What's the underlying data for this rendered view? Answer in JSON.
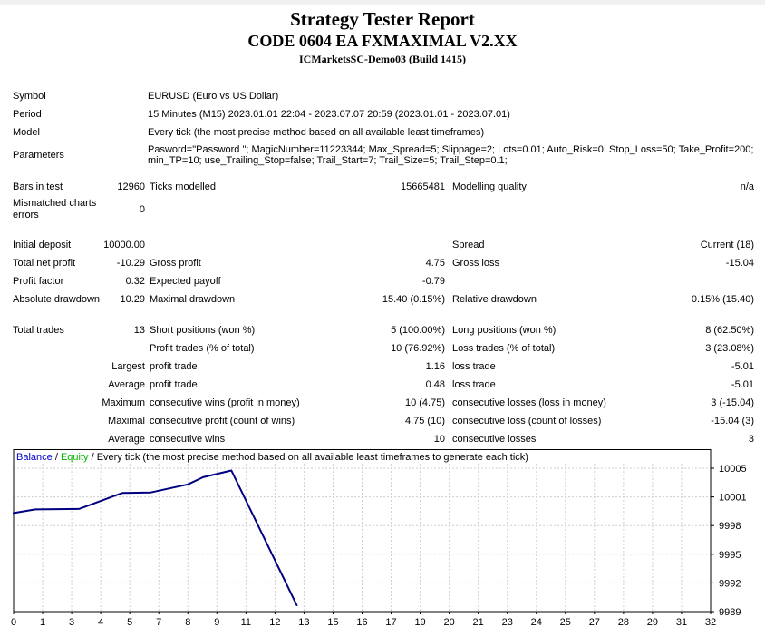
{
  "header": {
    "title": "Strategy Tester Report",
    "subtitle": "CODE 0604 EA FXMAXIMAL V2.XX",
    "server": "ICMarketsSC-Demo03 (Build 1415)"
  },
  "info_rows": [
    {
      "label": "Symbol",
      "value": "EURUSD (Euro vs US Dollar)"
    },
    {
      "label": "Period",
      "value": "15 Minutes (M15) 2023.01.01 22:04 - 2023.07.07 20:59 (2023.01.01 - 2023.07.01)"
    },
    {
      "label": "Model",
      "value": "Every tick (the most precise method based on all available least timeframes)"
    },
    {
      "label": "Parameters",
      "value": "Pasword=\"Password \"; MagicNumber=11223344; Max_Spread=5; Slippage=2; Lots=0.01; Auto_Risk=0; Stop_Loss=50; Take_Profit=200; min_TP=10; use_Trailing_Stop=false; Trail_Start=7; Trail_Size=5; Trail_Step=0.1;"
    }
  ],
  "stats_sections": [
    {
      "rows": [
        {
          "c1": "Bars in test",
          "v1": "12960",
          "c2": "Ticks modelled",
          "v2": "15665481",
          "c3": "Modelling quality",
          "v3": "n/a"
        },
        {
          "c1": "Mismatched charts errors",
          "v1": "0",
          "c2": "",
          "v2": "",
          "c3": "",
          "v3": ""
        }
      ]
    },
    {
      "rows": [
        {
          "c1": "Initial deposit",
          "v1": "10000.00",
          "c2": "",
          "v2": "",
          "c3": "Spread",
          "v3": "Current (18)"
        },
        {
          "c1": "Total net profit",
          "v1": "-10.29",
          "c2": "Gross profit",
          "v2": "4.75",
          "c3": "Gross loss",
          "v3": "-15.04"
        },
        {
          "c1": "Profit factor",
          "v1": "0.32",
          "c2": "Expected payoff",
          "v2": "-0.79",
          "c3": "",
          "v3": ""
        },
        {
          "c1": "Absolute drawdown",
          "v1": "10.29",
          "c2": "Maximal drawdown",
          "v2": "15.40 (0.15%)",
          "c3": "Relative drawdown",
          "v3": "0.15% (15.40)"
        }
      ]
    },
    {
      "rows": [
        {
          "c1": "Total trades",
          "v1": "13",
          "c2": "Short positions (won %)",
          "v2": "5 (100.00%)",
          "c3": "Long positions (won %)",
          "v3": "8 (62.50%)"
        },
        {
          "c1": "",
          "v1": "",
          "c2": "Profit trades (% of total)",
          "v2": "10 (76.92%)",
          "c3": "Loss trades (% of total)",
          "v3": "3 (23.08%)"
        },
        {
          "c1": "",
          "v1": "Largest",
          "c2": "profit trade",
          "v2": "1.16",
          "c3": "loss trade",
          "v3": "-5.01"
        },
        {
          "c1": "",
          "v1": "Average",
          "c2": "profit trade",
          "v2": "0.48",
          "c3": "loss trade",
          "v3": "-5.01"
        },
        {
          "c1": "",
          "v1": "Maximum",
          "c2": "consecutive wins (profit in money)",
          "v2": "10 (4.75)",
          "c3": "consecutive losses (loss in money)",
          "v3": "3 (-15.04)"
        },
        {
          "c1": "",
          "v1": "Maximal",
          "c2": "consecutive profit (count of wins)",
          "v2": "4.75 (10)",
          "c3": "consecutive loss (count of losses)",
          "v3": "-15.04 (3)"
        },
        {
          "c1": "",
          "v1": "Average",
          "c2": "consecutive wins",
          "v2": "10",
          "c3": "consecutive losses",
          "v3": "3"
        }
      ]
    }
  ],
  "chart": {
    "legend": {
      "balance_label": "Balance",
      "separator": " / ",
      "equity_label": "Equity",
      "description": "Every tick (the most precise method based on all available least timeframes to generate each tick)"
    },
    "colors": {
      "balance_text": "#0000C8",
      "equity_text": "#00B400",
      "line": "#000080",
      "grid": "#CFCFCF",
      "border": "#000000"
    },
    "x_labels": [
      "0",
      "1",
      "3",
      "4",
      "5",
      "7",
      "8",
      "9",
      "11",
      "12",
      "13",
      "15",
      "16",
      "17",
      "19",
      "20",
      "21",
      "23",
      "24",
      "25",
      "27",
      "28",
      "29",
      "31",
      "32"
    ],
    "x_max": 32,
    "y_ticks": [
      10005,
      10001,
      9998,
      9995,
      9992,
      9989
    ],
    "y_top_value": 10005,
    "y_bottom_value": 9989,
    "balance_series": [
      {
        "trade": 0,
        "balance": 10000.0
      },
      {
        "trade": 1,
        "balance": 10000.4
      },
      {
        "trade": 3,
        "balance": 10000.45
      },
      {
        "trade": 5,
        "balance": 10002.25
      },
      {
        "trade": 6.3,
        "balance": 10002.3
      },
      {
        "trade": 8,
        "balance": 10003.2
      },
      {
        "trade": 8.7,
        "balance": 10004.0
      },
      {
        "trade": 10,
        "balance": 10004.75
      },
      {
        "trade": 13,
        "balance": 9989.71
      }
    ]
  },
  "chart_data": {
    "type": "line",
    "title": "Balance / Equity / Every tick (the most precise method based on all available least timeframes to generate each tick)",
    "series": [
      {
        "name": "Balance",
        "x": [
          0,
          1,
          3,
          5,
          6.3,
          8,
          8.7,
          10,
          13
        ],
        "y": [
          10000.0,
          10000.4,
          10000.45,
          10002.25,
          10002.3,
          10003.2,
          10004.0,
          10004.75,
          9989.71
        ]
      }
    ],
    "xlim": [
      0,
      32
    ],
    "x_tick_labels": [
      "0",
      "1",
      "3",
      "4",
      "5",
      "7",
      "8",
      "9",
      "11",
      "12",
      "13",
      "15",
      "16",
      "17",
      "19",
      "20",
      "21",
      "23",
      "24",
      "25",
      "27",
      "28",
      "29",
      "31",
      "32"
    ],
    "y_tick_labels": [
      "10005",
      "10001",
      "9998",
      "9995",
      "9992",
      "9989"
    ],
    "grid": true,
    "legend_position": "top-left"
  }
}
